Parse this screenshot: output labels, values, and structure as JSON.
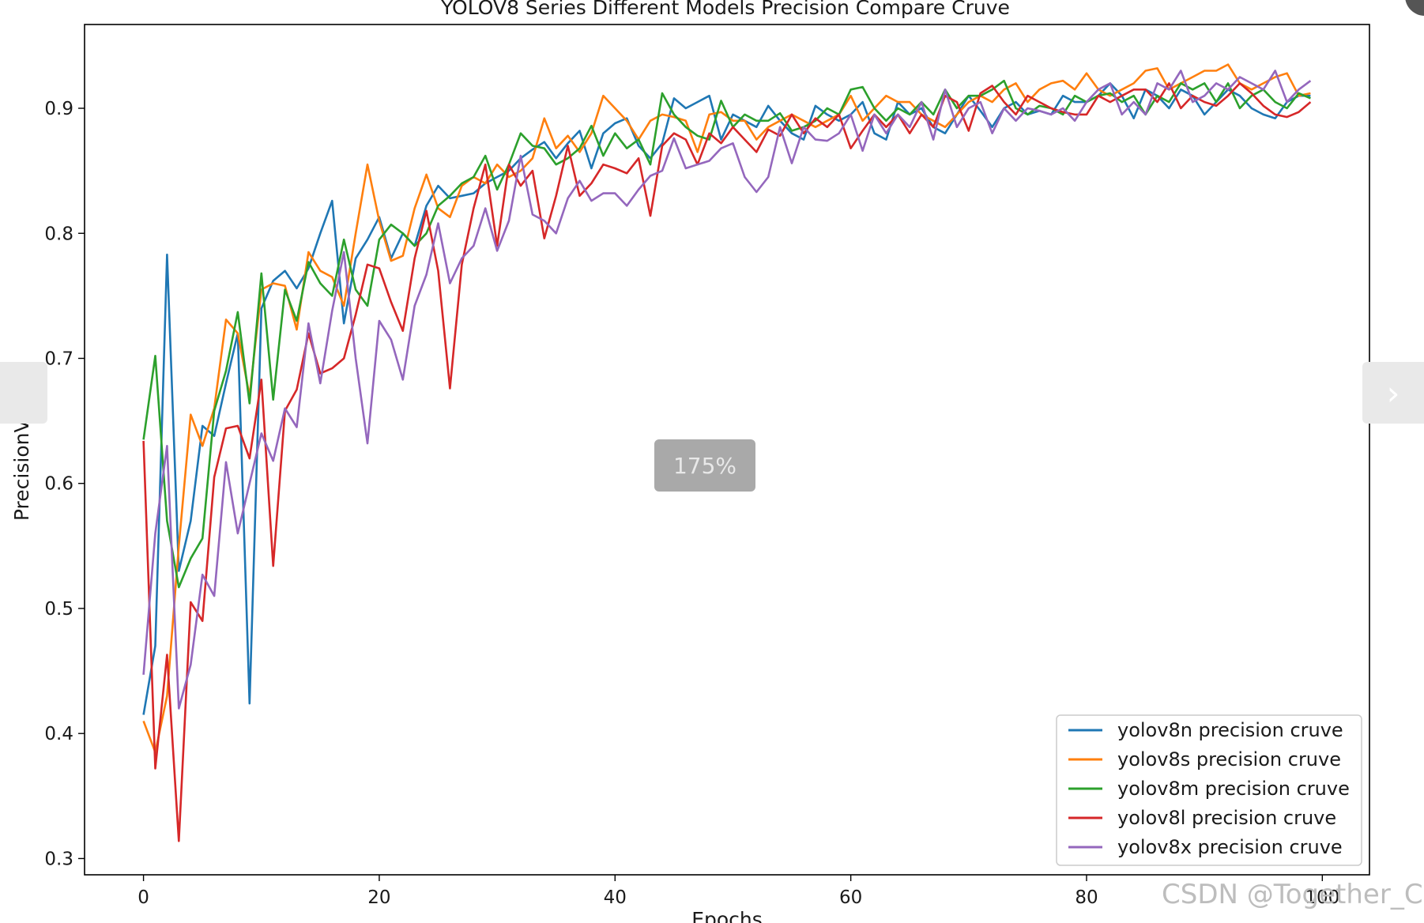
{
  "viewer": {
    "zoom_label": "175%",
    "prev_icon": "chevron-left-icon",
    "next_icon": "chevron-right-icon",
    "next_glyph": "›",
    "watermark": "CSDN @Together_CZ"
  },
  "chart_data": {
    "type": "line",
    "title": "YOLOV8 Series Different Models Precision Compare Cruve",
    "xlabel": "Epochs",
    "ylabel": "PrecisionValue",
    "xlim": [
      -5,
      104
    ],
    "ylim": [
      0.287,
      0.967
    ],
    "xticks": [
      0,
      20,
      40,
      60,
      80,
      100
    ],
    "yticks": [
      0.3,
      0.4,
      0.5,
      0.6,
      0.7,
      0.8,
      0.9
    ],
    "grid": false,
    "legend_position": "lower-right",
    "series": [
      {
        "name": "yolov8n precision cruve",
        "color": "#1f77b4",
        "values": [
          0.415,
          0.47,
          0.783,
          0.53,
          0.57,
          0.646,
          0.638,
          0.68,
          0.72,
          0.424,
          0.74,
          0.762,
          0.77,
          0.756,
          0.772,
          0.8,
          0.826,
          0.728,
          0.78,
          0.795,
          0.813,
          0.78,
          0.8,
          0.79,
          0.822,
          0.838,
          0.828,
          0.83,
          0.832,
          0.84,
          0.845,
          0.85,
          0.86,
          0.867,
          0.873,
          0.86,
          0.872,
          0.882,
          0.852,
          0.88,
          0.888,
          0.892,
          0.87,
          0.86,
          0.872,
          0.908,
          0.9,
          0.905,
          0.91,
          0.875,
          0.895,
          0.89,
          0.885,
          0.902,
          0.89,
          0.88,
          0.875,
          0.902,
          0.895,
          0.89,
          0.895,
          0.905,
          0.88,
          0.875,
          0.905,
          0.895,
          0.9,
          0.885,
          0.88,
          0.895,
          0.91,
          0.898,
          0.885,
          0.9,
          0.905,
          0.895,
          0.898,
          0.895,
          0.91,
          0.905,
          0.905,
          0.91,
          0.92,
          0.91,
          0.892,
          0.915,
          0.91,
          0.9,
          0.915,
          0.91,
          0.895,
          0.905,
          0.915,
          0.91,
          0.9,
          0.895,
          0.892,
          0.905,
          0.91,
          0.91
        ]
      },
      {
        "name": "yolov8s precision cruve",
        "color": "#ff7f0e",
        "values": [
          0.41,
          0.385,
          0.43,
          0.55,
          0.655,
          0.63,
          0.66,
          0.731,
          0.72,
          0.67,
          0.755,
          0.76,
          0.758,
          0.723,
          0.785,
          0.77,
          0.765,
          0.742,
          0.8,
          0.855,
          0.81,
          0.778,
          0.782,
          0.82,
          0.847,
          0.82,
          0.813,
          0.838,
          0.845,
          0.84,
          0.855,
          0.845,
          0.85,
          0.86,
          0.892,
          0.868,
          0.878,
          0.865,
          0.88,
          0.91,
          0.9,
          0.89,
          0.875,
          0.89,
          0.895,
          0.893,
          0.89,
          0.865,
          0.895,
          0.897,
          0.89,
          0.89,
          0.875,
          0.885,
          0.89,
          0.895,
          0.89,
          0.885,
          0.89,
          0.895,
          0.91,
          0.89,
          0.9,
          0.91,
          0.905,
          0.905,
          0.895,
          0.89,
          0.885,
          0.895,
          0.905,
          0.91,
          0.905,
          0.915,
          0.92,
          0.905,
          0.915,
          0.92,
          0.922,
          0.915,
          0.928,
          0.915,
          0.91,
          0.915,
          0.92,
          0.93,
          0.932,
          0.915,
          0.92,
          0.925,
          0.93,
          0.93,
          0.935,
          0.92,
          0.915,
          0.92,
          0.925,
          0.928,
          0.91,
          0.912
        ]
      },
      {
        "name": "yolov8m precision cruve",
        "color": "#2ca02c",
        "values": [
          0.635,
          0.702,
          0.57,
          0.517,
          0.54,
          0.556,
          0.658,
          0.69,
          0.737,
          0.664,
          0.768,
          0.667,
          0.755,
          0.73,
          0.777,
          0.76,
          0.75,
          0.795,
          0.755,
          0.742,
          0.795,
          0.807,
          0.8,
          0.79,
          0.8,
          0.822,
          0.83,
          0.84,
          0.845,
          0.862,
          0.835,
          0.855,
          0.88,
          0.87,
          0.868,
          0.855,
          0.86,
          0.868,
          0.886,
          0.862,
          0.88,
          0.868,
          0.875,
          0.855,
          0.912,
          0.895,
          0.885,
          0.878,
          0.875,
          0.906,
          0.885,
          0.895,
          0.89,
          0.89,
          0.896,
          0.882,
          0.885,
          0.89,
          0.9,
          0.895,
          0.915,
          0.917,
          0.9,
          0.89,
          0.9,
          0.895,
          0.905,
          0.895,
          0.915,
          0.9,
          0.91,
          0.91,
          0.915,
          0.922,
          0.9,
          0.895,
          0.902,
          0.9,
          0.895,
          0.91,
          0.905,
          0.91,
          0.912,
          0.905,
          0.91,
          0.895,
          0.91,
          0.905,
          0.92,
          0.915,
          0.92,
          0.905,
          0.92,
          0.9,
          0.91,
          0.915,
          0.905,
          0.9,
          0.912,
          0.908
        ]
      },
      {
        "name": "yolov8l precision cruve",
        "color": "#d62728",
        "values": [
          0.634,
          0.372,
          0.463,
          0.314,
          0.505,
          0.49,
          0.605,
          0.644,
          0.646,
          0.62,
          0.683,
          0.534,
          0.658,
          0.675,
          0.72,
          0.688,
          0.692,
          0.7,
          0.735,
          0.775,
          0.772,
          0.745,
          0.722,
          0.78,
          0.818,
          0.77,
          0.676,
          0.775,
          0.82,
          0.855,
          0.79,
          0.855,
          0.838,
          0.85,
          0.796,
          0.83,
          0.87,
          0.83,
          0.84,
          0.855,
          0.852,
          0.848,
          0.86,
          0.814,
          0.87,
          0.88,
          0.875,
          0.855,
          0.88,
          0.872,
          0.885,
          0.875,
          0.865,
          0.883,
          0.878,
          0.895,
          0.88,
          0.892,
          0.885,
          0.895,
          0.868,
          0.882,
          0.895,
          0.885,
          0.895,
          0.88,
          0.895,
          0.885,
          0.91,
          0.905,
          0.882,
          0.912,
          0.918,
          0.905,
          0.895,
          0.91,
          0.905,
          0.9,
          0.897,
          0.895,
          0.895,
          0.91,
          0.905,
          0.91,
          0.915,
          0.915,
          0.905,
          0.92,
          0.9,
          0.91,
          0.905,
          0.902,
          0.91,
          0.92,
          0.912,
          0.902,
          0.895,
          0.893,
          0.897,
          0.905
        ]
      },
      {
        "name": "yolov8x precision cruve",
        "color": "#9467bd",
        "values": [
          0.447,
          0.56,
          0.63,
          0.42,
          0.455,
          0.527,
          0.51,
          0.617,
          0.56,
          0.6,
          0.64,
          0.618,
          0.66,
          0.645,
          0.728,
          0.68,
          0.738,
          0.785,
          0.7,
          0.632,
          0.73,
          0.715,
          0.683,
          0.742,
          0.767,
          0.808,
          0.76,
          0.78,
          0.79,
          0.82,
          0.786,
          0.81,
          0.862,
          0.815,
          0.81,
          0.8,
          0.828,
          0.842,
          0.826,
          0.832,
          0.832,
          0.822,
          0.835,
          0.846,
          0.85,
          0.876,
          0.852,
          0.855,
          0.858,
          0.868,
          0.872,
          0.845,
          0.833,
          0.845,
          0.885,
          0.856,
          0.885,
          0.875,
          0.874,
          0.88,
          0.895,
          0.866,
          0.895,
          0.88,
          0.895,
          0.885,
          0.905,
          0.875,
          0.915,
          0.885,
          0.9,
          0.905,
          0.88,
          0.9,
          0.89,
          0.9,
          0.898,
          0.895,
          0.9,
          0.89,
          0.905,
          0.915,
          0.92,
          0.895,
          0.905,
          0.895,
          0.92,
          0.915,
          0.93,
          0.905,
          0.91,
          0.92,
          0.915,
          0.925,
          0.92,
          0.915,
          0.93,
          0.905,
          0.915,
          0.922
        ]
      }
    ]
  }
}
